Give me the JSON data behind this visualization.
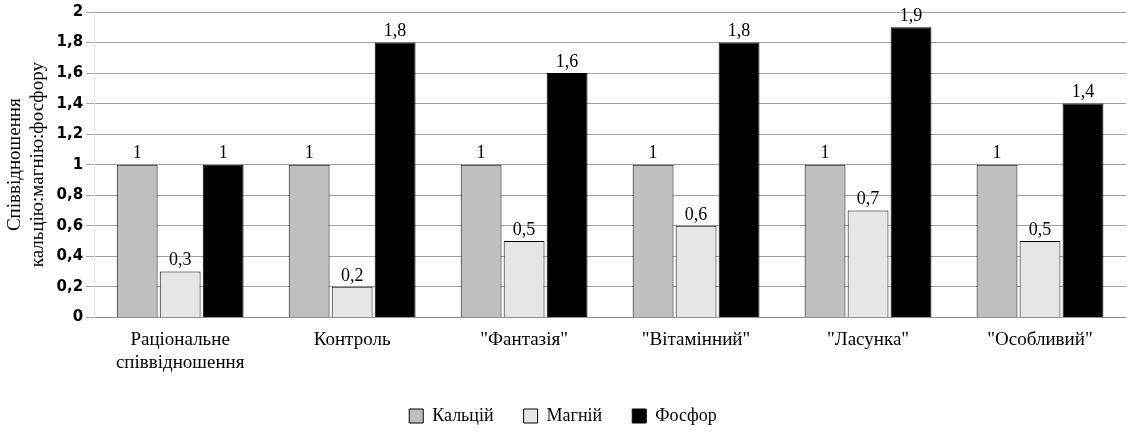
{
  "chart_data": {
    "type": "bar",
    "ylabel": "Співвідношення кальцію:магнію:фосфору",
    "categories": [
      "Раціональне співвідношення",
      "Контроль",
      "\"Фантазія\"",
      "\"Вітамінний\"",
      "\"Ласунка\"",
      "\"Особливий\""
    ],
    "series": [
      {
        "name": "Кальцій",
        "color": "#bfbfbf",
        "values": [
          1,
          1,
          1,
          1,
          1,
          1
        ],
        "value_labels": [
          "1",
          "1",
          "1",
          "1",
          "1",
          "1"
        ]
      },
      {
        "name": "Магній",
        "color": "#e6e6e6",
        "values": [
          0.3,
          0.2,
          0.5,
          0.6,
          0.7,
          0.5
        ],
        "value_labels": [
          "0,3",
          "0,2",
          "0,5",
          "0,6",
          "0,7",
          "0,5"
        ]
      },
      {
        "name": "Фосфор",
        "color": "#000000",
        "values": [
          1,
          1.8,
          1.6,
          1.8,
          1.9,
          1.4
        ],
        "value_labels": [
          "1",
          "1,8",
          "1,6",
          "1,8",
          "1,9",
          "1,4"
        ]
      }
    ],
    "ylim": [
      0,
      2
    ],
    "yticks": [
      0,
      {
        "value": 0.2,
        "label": "0,2"
      },
      {
        "value": 0.4,
        "label": "0,4"
      },
      {
        "value": 0.6,
        "label": "0,6"
      },
      {
        "value": 0.8,
        "label": "0,8"
      },
      1,
      {
        "value": 1.2,
        "label": "1,2"
      },
      {
        "value": 1.4,
        "label": "1,4"
      },
      {
        "value": 1.6,
        "label": "1,6"
      },
      {
        "value": 1.8,
        "label": "1,8"
      },
      2
    ],
    "grid": "y",
    "legend": "bottom"
  }
}
